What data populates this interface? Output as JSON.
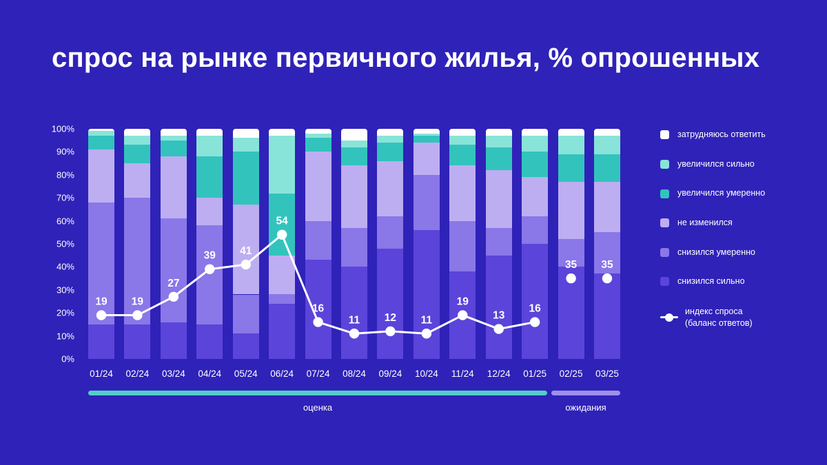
{
  "title": "спрос на рынке первичного жилья, % опрошенных",
  "colors": {
    "background": "#2f22b8",
    "text": "#ffffff",
    "line": "#ffffff",
    "timeline_estimate": "#53cfc6",
    "timeline_expectation": "#9e8eee"
  },
  "chart_data": {
    "type": "bar",
    "stacked": true,
    "title": "спрос на рынке первичного жилья, % опрошенных",
    "categories": [
      "01/24",
      "02/24",
      "03/24",
      "04/24",
      "05/24",
      "06/24",
      "07/24",
      "08/24",
      "09/24",
      "10/24",
      "11/24",
      "12/24",
      "01/25",
      "02/25",
      "03/25"
    ],
    "y_ticks": [
      "100%",
      "90%",
      "80%",
      "70%",
      "60%",
      "50%",
      "40%",
      "30%",
      "20%",
      "10%",
      "0%"
    ],
    "ylim": [
      0,
      100
    ],
    "grid": false,
    "legend_position": "right",
    "series": [
      {
        "name": "снизился сильно",
        "color": "#5b44da",
        "values": [
          15,
          15,
          16,
          15,
          11,
          24,
          43,
          40,
          48,
          56,
          38,
          45,
          50,
          40,
          37
        ]
      },
      {
        "name": "снизился умеренно",
        "color": "#8a77e8",
        "values": [
          53,
          55,
          45,
          43,
          17,
          4,
          17,
          17,
          14,
          24,
          22,
          12,
          12,
          12,
          18
        ]
      },
      {
        "name": "не изменился",
        "color": "#bdaef2",
        "values": [
          23,
          15,
          27,
          12,
          39,
          17,
          30,
          27,
          24,
          14,
          24,
          25,
          17,
          25,
          22
        ]
      },
      {
        "name": "увеличился умеренно",
        "color": "#33c3bd",
        "values": [
          6,
          8,
          7,
          18,
          23,
          27,
          6,
          8,
          8,
          3,
          9,
          10,
          11,
          12,
          12
        ]
      },
      {
        "name": "увеличился сильно",
        "color": "#88e4d8",
        "values": [
          2,
          4,
          2,
          9,
          6,
          25,
          2,
          3,
          3,
          1,
          4,
          5,
          7,
          8,
          8
        ]
      },
      {
        "name": "затрудняюсь ответить",
        "color": "#ffffff",
        "values": [
          1,
          3,
          3,
          3,
          4,
          3,
          2,
          5,
          3,
          2,
          3,
          3,
          3,
          3,
          3
        ]
      }
    ],
    "line": {
      "name": "индекс спроса (баланс ответов)",
      "color": "#ffffff",
      "values": [
        19,
        19,
        27,
        39,
        41,
        54,
        16,
        11,
        12,
        11,
        19,
        13,
        16,
        35,
        35
      ],
      "connected_points": 13
    }
  },
  "legend": {
    "items": [
      {
        "label": "затрудняюсь ответить",
        "color": "#ffffff"
      },
      {
        "label": "увеличился сильно",
        "color": "#88e4d8"
      },
      {
        "label": "увеличился умеренно",
        "color": "#33c3bd"
      },
      {
        "label": "не изменился",
        "color": "#bdaef2"
      },
      {
        "label": "снизился умеренно",
        "color": "#8a77e8"
      },
      {
        "label": "снизился сильно",
        "color": "#5b44da"
      }
    ],
    "line_item": {
      "label": "индекс спроса\n(баланс ответов)"
    }
  },
  "timeline": {
    "segments": [
      {
        "label": "оценка",
        "color": "#53cfc6",
        "span": 13
      },
      {
        "label": "ожидания",
        "color": "#9e8eee",
        "span": 2
      }
    ]
  }
}
